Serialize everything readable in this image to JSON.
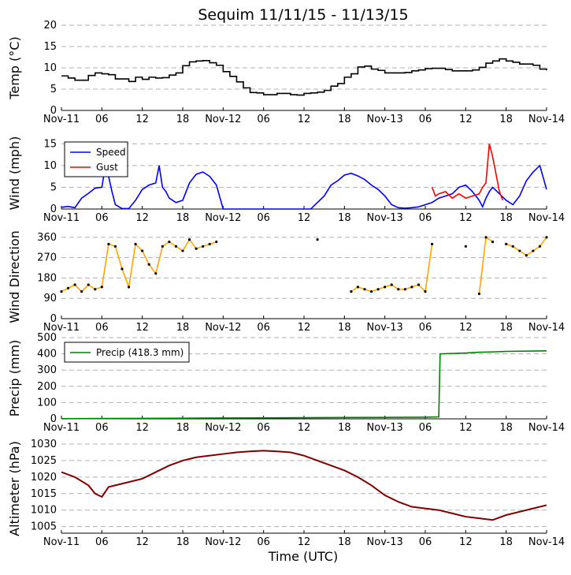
{
  "title": "Sequim 11/11/15 - 11/13/15",
  "xlabel": "Time (UTC)",
  "x_tick_labels": [
    "Nov-11",
    "06",
    "12",
    "18",
    "Nov-12",
    "06",
    "12",
    "18",
    "Nov-13",
    "06",
    "12",
    "18",
    "Nov-14"
  ],
  "x_unit": "hours since Nov-11 00:00 UTC",
  "colors": {
    "temp": "#000000",
    "speed": "#0000ff",
    "gust": "#ff0000",
    "direction": "#ffa500",
    "direction_marker": "#000000",
    "precip": "#008000",
    "altimeter": "#800000",
    "grid": "#b0b0b0"
  },
  "chart_data": [
    {
      "type": "line",
      "id": "temp",
      "ylabel": "Temp ($^\\circ$C)",
      "ylabel_text": "Temp (°C)",
      "ylim": [
        0,
        20
      ],
      "yticks": [
        0,
        5,
        10,
        15,
        20
      ],
      "grid": "horizontal dashed",
      "series": [
        {
          "color": "#000000",
          "x": [
            0,
            1,
            2,
            3,
            4,
            5,
            6,
            7,
            8,
            9,
            10,
            11,
            12,
            13,
            14,
            15,
            16,
            17,
            18,
            19,
            20,
            21,
            22,
            23,
            24,
            25,
            26,
            27,
            28,
            29,
            30,
            31,
            32,
            33,
            34,
            35,
            36,
            37,
            38,
            39,
            40,
            41,
            42,
            43,
            44,
            45,
            46,
            47,
            48,
            49,
            50,
            51,
            52,
            53,
            54,
            55,
            56,
            57,
            58,
            59,
            60,
            61,
            62,
            63,
            64,
            65,
            66,
            67,
            68,
            69,
            70,
            71,
            72
          ],
          "y": [
            8.1,
            7.6,
            7.1,
            7.1,
            8.2,
            8.8,
            8.6,
            8.4,
            7.4,
            7.4,
            6.8,
            7.8,
            7.3,
            7.8,
            7.6,
            7.7,
            8.3,
            8.8,
            10.5,
            11.4,
            11.6,
            11.7,
            11.2,
            10.6,
            9.1,
            8.0,
            6.7,
            5.3,
            4.2,
            4.1,
            3.7,
            3.7,
            4.0,
            4.0,
            3.7,
            3.6,
            4.0,
            4.1,
            4.3,
            4.7,
            5.7,
            6.3,
            7.8,
            8.6,
            10.2,
            10.4,
            9.7,
            9.4,
            8.8,
            8.8,
            8.8,
            8.9,
            9.3,
            9.5,
            9.8,
            9.9,
            9.9,
            9.6,
            9.3,
            9.3,
            9.3,
            9.5,
            10.1,
            11.1,
            11.6,
            12.1,
            11.6,
            11.3,
            10.9,
            10.9,
            10.6,
            9.7,
            9.4
          ]
        }
      ]
    },
    {
      "type": "line",
      "id": "wind",
      "ylabel": "Wind (mph)",
      "ylim": [
        0,
        16.5
      ],
      "yticks": [
        0,
        5,
        10,
        15
      ],
      "grid": "horizontal dashed",
      "legend": {
        "placement": "upper-left",
        "entries": [
          "Speed",
          "Gust"
        ]
      },
      "series": [
        {
          "name": "Speed",
          "color": "#0000ff",
          "x": [
            0,
            1,
            2,
            3,
            4,
            5,
            6,
            6.5,
            7,
            7.5,
            8,
            9,
            10,
            11,
            12,
            13,
            14,
            14.5,
            15,
            15.5,
            16,
            17,
            18,
            19,
            20,
            21,
            22,
            23,
            24,
            25,
            26,
            27,
            28,
            29,
            30,
            31,
            32,
            33,
            34,
            35,
            36,
            37,
            38,
            39,
            40,
            41,
            42,
            43,
            44,
            45,
            46,
            47,
            48,
            49,
            50,
            51,
            52,
            53,
            54,
            55,
            56,
            57,
            58,
            59,
            60,
            61,
            62,
            62.5,
            63,
            63.5,
            64,
            65,
            66,
            67,
            68,
            69,
            70,
            71,
            72
          ],
          "y": [
            0.4,
            0.6,
            0.3,
            2.5,
            3.6,
            4.8,
            5.0,
            9.7,
            7.5,
            4.0,
            1.0,
            0.1,
            0.1,
            2.0,
            4.5,
            5.5,
            6.0,
            10.0,
            5.0,
            4.0,
            2.5,
            1.5,
            2.0,
            6.0,
            8.0,
            8.5,
            7.5,
            5.5,
            0,
            0,
            0,
            0,
            0,
            0,
            0,
            0,
            0,
            0,
            0,
            0,
            0,
            0,
            1.5,
            3.0,
            5.5,
            6.5,
            7.8,
            8.2,
            7.6,
            6.8,
            5.5,
            4.5,
            3.0,
            1.0,
            0.3,
            0.2,
            0.3,
            0.5,
            1.0,
            1.5,
            2.5,
            3.0,
            3.5,
            5.0,
            5.5,
            4.0,
            2.0,
            0.5,
            2.5,
            4.0,
            5.0,
            3.5,
            2.0,
            1.0,
            3.0,
            6.5,
            8.5,
            10.0,
            4.5
          ]
        },
        {
          "name": "Gust",
          "color": "#ff0000",
          "x": [
            55,
            55.5,
            56,
            57,
            58,
            59,
            60,
            61,
            62,
            62.5,
            63,
            63.5,
            64,
            64.5,
            65,
            65.5
          ],
          "y": [
            5.0,
            3.0,
            3.5,
            4.0,
            2.5,
            3.5,
            2.5,
            3.0,
            3.5,
            5.0,
            6.0,
            15.0,
            12.0,
            8.0,
            4.0,
            2.0
          ]
        }
      ]
    },
    {
      "type": "scatter",
      "id": "direction",
      "ylabel": "Wind Direction",
      "ylim": [
        0,
        370
      ],
      "yticks": [
        0,
        90,
        180,
        270,
        360
      ],
      "grid": "horizontal dashed",
      "series": [
        {
          "color": "#ffa500",
          "x": [
            0,
            1,
            2,
            3,
            4,
            5,
            6,
            7,
            8,
            9,
            10,
            11,
            12,
            13,
            14,
            15,
            16,
            17,
            18,
            19,
            20,
            21,
            22,
            23,
            24,
            25,
            26,
            27,
            28,
            29,
            30,
            31,
            32,
            33,
            34,
            35,
            36,
            37,
            38,
            39,
            40,
            41,
            42,
            43,
            44,
            45,
            46,
            47,
            48,
            49,
            50,
            51,
            52,
            53,
            54,
            55,
            56,
            57,
            58,
            59,
            60,
            61,
            62,
            63,
            64,
            65,
            66,
            67,
            68,
            69,
            70,
            71,
            72
          ],
          "y": [
            120,
            135,
            150,
            120,
            150,
            130,
            140,
            330,
            320,
            220,
            140,
            330,
            300,
            240,
            200,
            320,
            340,
            320,
            300,
            350,
            310,
            320,
            330,
            340,
            null,
            null,
            null,
            null,
            null,
            null,
            null,
            null,
            null,
            null,
            null,
            null,
            null,
            null,
            350,
            null,
            null,
            null,
            null,
            120,
            140,
            130,
            120,
            130,
            140,
            150,
            130,
            130,
            140,
            150,
            120,
            330,
            null,
            null,
            null,
            null,
            320,
            null,
            110,
            360,
            340,
            null,
            330,
            320,
            300,
            280,
            300,
            320,
            360
          ],
          "connect": true
        }
      ]
    },
    {
      "type": "line",
      "id": "precip",
      "ylabel": "Precip (mm)",
      "ylim": [
        0,
        500
      ],
      "yticks": [
        0,
        100,
        200,
        300,
        400,
        500
      ],
      "grid": "horizontal dashed",
      "legend": {
        "placement": "upper-left",
        "entries": [
          "Precip (418.3 mm)"
        ]
      },
      "series": [
        {
          "name": "Precip (418.3 mm)",
          "color": "#008000",
          "x": [
            0,
            6,
            12,
            18,
            24,
            30,
            36,
            42,
            48,
            54,
            56,
            56.2,
            60,
            62,
            64,
            66,
            72
          ],
          "y": [
            1,
            2,
            3,
            4,
            5,
            6,
            7,
            8,
            9,
            10,
            12,
            400,
            405,
            410,
            412,
            415,
            418.3
          ]
        }
      ]
    },
    {
      "type": "line",
      "id": "altimeter",
      "ylabel": "Altimeter (hPa)",
      "ylim": [
        1003,
        1030
      ],
      "yticks": [
        1005,
        1010,
        1015,
        1020,
        1025,
        1030
      ],
      "grid": "horizontal dashed",
      "series": [
        {
          "color": "#800000",
          "x": [
            0,
            2,
            4,
            5,
            6,
            7,
            9,
            12,
            14,
            16,
            18,
            20,
            22,
            24,
            26,
            28,
            30,
            32,
            34,
            36,
            38,
            40,
            42,
            44,
            46,
            48,
            50,
            52,
            54,
            56,
            58,
            60,
            62,
            64,
            66,
            68,
            70,
            72
          ],
          "y": [
            1021.5,
            1020,
            1017.5,
            1015,
            1014,
            1017,
            1018,
            1019.5,
            1021.5,
            1023.5,
            1025,
            1026,
            1026.5,
            1027,
            1027.5,
            1027.8,
            1028,
            1027.8,
            1027.5,
            1026.5,
            1025,
            1023.5,
            1022,
            1020,
            1017.5,
            1014.5,
            1012.5,
            1011,
            1010.5,
            1010,
            1009,
            1008,
            1007.5,
            1007,
            1008.5,
            1009.5,
            1010.5,
            1011.5
          ]
        }
      ]
    }
  ]
}
